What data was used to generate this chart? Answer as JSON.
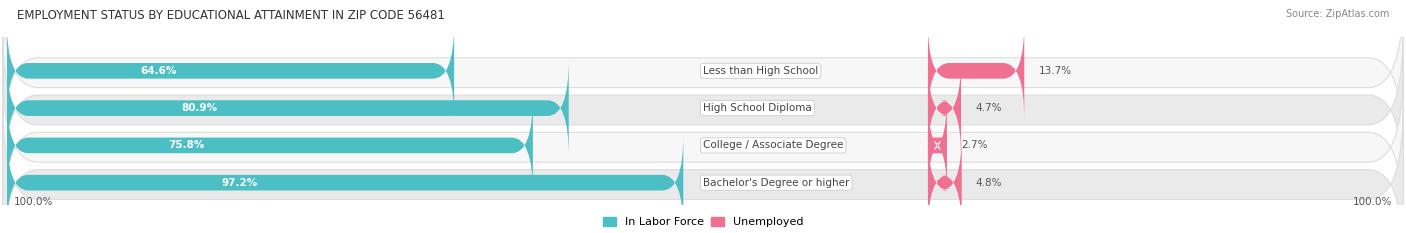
{
  "title": "EMPLOYMENT STATUS BY EDUCATIONAL ATTAINMENT IN ZIP CODE 56481",
  "source": "Source: ZipAtlas.com",
  "categories": [
    "Less than High School",
    "High School Diploma",
    "College / Associate Degree",
    "Bachelor's Degree or higher"
  ],
  "in_labor_force": [
    64.6,
    80.9,
    75.8,
    97.2
  ],
  "unemployed": [
    13.7,
    4.7,
    2.7,
    4.8
  ],
  "labor_color": "#4BBFC4",
  "unemployed_color": "#F07090",
  "background_color": "#FFFFFF",
  "stripe_color1": "#F7F7F7",
  "stripe_color2": "#EAEAEA",
  "row_border_color": "#DDDDDD",
  "x_left_label": "100.0%",
  "x_right_label": "100.0%",
  "title_fontsize": 8.5,
  "source_fontsize": 7,
  "label_fontsize": 7.5,
  "bar_label_fontsize": 7.5,
  "legend_fontsize": 8,
  "x_tick_fontsize": 7.5
}
